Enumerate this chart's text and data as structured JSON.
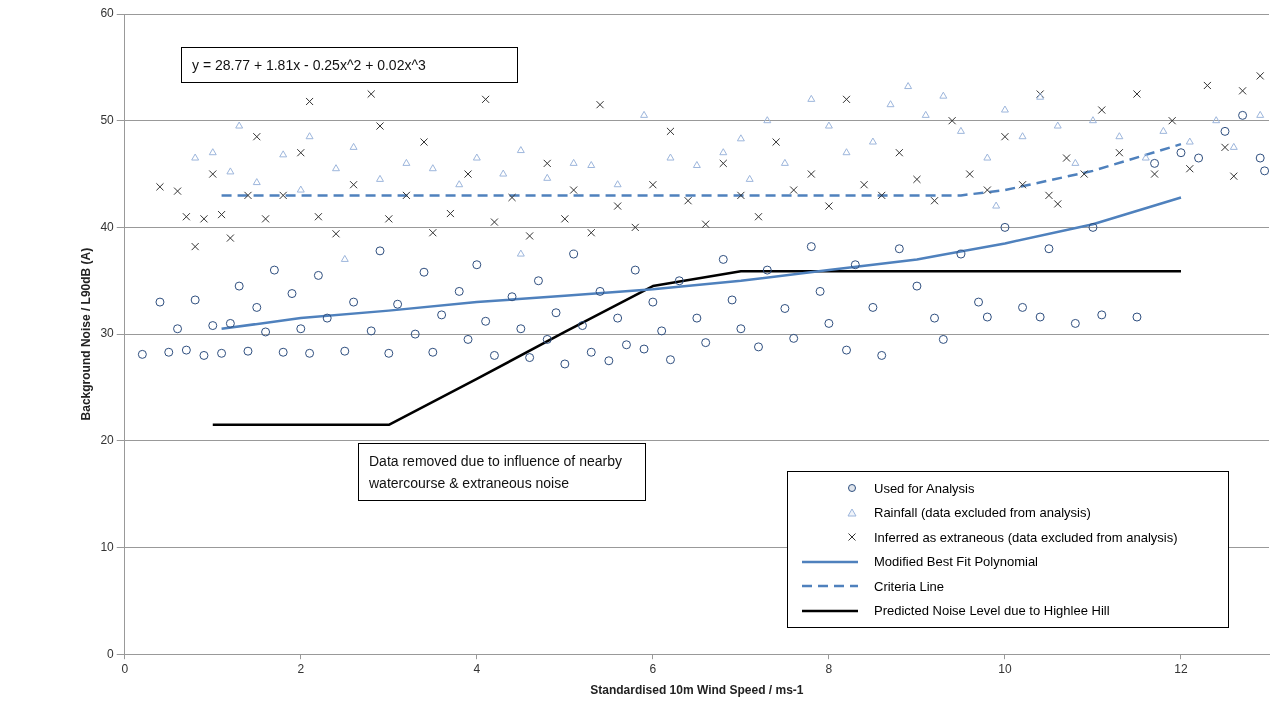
{
  "chart_data": {
    "type": "scatter",
    "xlabel": "Standardised 10m Wind Speed / ms-1",
    "ylabel": "Background Noise / L90dB (A)",
    "xlim": [
      0,
      13
    ],
    "xticks": [
      0,
      2,
      4,
      6,
      8,
      10,
      12
    ],
    "ylim": [
      0,
      60
    ],
    "yticks": [
      0,
      10,
      20,
      30,
      40,
      50,
      60
    ],
    "grid": "y",
    "legend": "bottom right",
    "annotations": [
      "y = 28.77 + 1.81x - 0.25x^2 + 0.02x^3",
      "Data removed due to influence of nearby watercourse & extraneous noise"
    ],
    "series": [
      {
        "name": "Used for Analysis",
        "type": "scatter",
        "marker": "circle",
        "color": "#2f4f7f",
        "x": [
          0.2,
          0.4,
          0.5,
          0.6,
          0.7,
          0.8,
          0.9,
          1.0,
          1.1,
          1.2,
          1.3,
          1.4,
          1.5,
          1.6,
          1.7,
          1.8,
          1.9,
          2.0,
          2.1,
          2.2,
          2.3,
          2.5,
          2.6,
          2.8,
          2.9,
          3.0,
          3.1,
          3.3,
          3.4,
          3.5,
          3.6,
          3.8,
          3.9,
          4.0,
          4.1,
          4.2,
          4.4,
          4.5,
          4.6,
          4.7,
          4.8,
          4.9,
          5.0,
          5.1,
          5.2,
          5.3,
          5.4,
          5.5,
          5.6,
          5.7,
          5.8,
          5.9,
          6.0,
          6.1,
          6.2,
          6.3,
          6.5,
          6.6,
          6.8,
          6.9,
          7.0,
          7.2,
          7.3,
          7.5,
          7.6,
          7.8,
          7.9,
          8.0,
          8.2,
          8.3,
          8.5,
          8.6,
          8.8,
          9.0,
          9.2,
          9.3,
          9.5,
          9.7,
          9.8,
          10.0,
          10.2,
          10.4,
          10.5,
          10.8,
          11.0,
          11.1,
          11.5,
          11.7,
          12.0,
          12.2,
          12.5,
          12.7,
          12.9,
          12.95
        ],
        "values": [
          28.1,
          33,
          28.3,
          30.5,
          28.5,
          33.2,
          28,
          30.8,
          28.2,
          31,
          34.5,
          28.4,
          32.5,
          30.2,
          36,
          28.3,
          33.8,
          30.5,
          28.2,
          35.5,
          31.5,
          28.4,
          33,
          30.3,
          37.8,
          28.2,
          32.8,
          30,
          35.8,
          28.3,
          31.8,
          34,
          29.5,
          36.5,
          31.2,
          28,
          33.5,
          30.5,
          27.8,
          35,
          29.5,
          32,
          27.2,
          37.5,
          30.8,
          28.3,
          34,
          27.5,
          31.5,
          29,
          36,
          28.6,
          33,
          30.3,
          27.6,
          35,
          31.5,
          29.2,
          37,
          33.2,
          30.5,
          28.8,
          36,
          32.4,
          29.6,
          38.2,
          34,
          31,
          28.5,
          36.5,
          32.5,
          28,
          38,
          34.5,
          31.5,
          29.5,
          37.5,
          33,
          31.6,
          40,
          32.5,
          31.6,
          38,
          31,
          40,
          31.8,
          31.6,
          46,
          47,
          46.5,
          49,
          50.5,
          46.5,
          45.3
        ]
      },
      {
        "name": "Rainfall (data excluded from analysis)",
        "type": "scatter",
        "marker": "triangle",
        "color": "#9db6dc",
        "x": [
          0.8,
          1.0,
          1.2,
          1.3,
          1.5,
          1.8,
          2.0,
          2.1,
          2.4,
          2.6,
          2.9,
          3.2,
          3.5,
          3.8,
          4.0,
          4.3,
          4.5,
          4.8,
          5.1,
          5.3,
          5.6,
          5.9,
          6.2,
          6.5,
          6.8,
          7.0,
          7.3,
          7.5,
          7.8,
          8.0,
          8.2,
          8.5,
          8.7,
          8.9,
          9.1,
          9.3,
          9.5,
          9.8,
          10.0,
          10.2,
          10.4,
          10.6,
          10.8,
          11.0,
          11.3,
          11.6,
          11.8,
          12.1,
          12.4,
          12.6,
          12.9,
          4.5,
          2.5,
          7.1,
          9.9
        ],
        "values": [
          46.5,
          47,
          45.2,
          49.5,
          44.2,
          46.8,
          43.5,
          48.5,
          45.5,
          47.5,
          44.5,
          46,
          45.5,
          44,
          46.5,
          45,
          47.2,
          44.6,
          46,
          45.8,
          44,
          50.5,
          46.5,
          45.8,
          47,
          48.3,
          50,
          46,
          52,
          49.5,
          47,
          48,
          51.5,
          53.2,
          50.5,
          52.3,
          49,
          46.5,
          51,
          48.5,
          52.2,
          49.5,
          46,
          50,
          48.5,
          46.5,
          49,
          48,
          50,
          47.5,
          50.5,
          37.5,
          37,
          44.5,
          42
        ]
      },
      {
        "name": "Inferred as extraneous (data excluded from analysis)",
        "type": "scatter",
        "marker": "cross",
        "color": "#333333",
        "x": [
          0.4,
          0.6,
          0.7,
          0.8,
          0.9,
          1.0,
          1.1,
          1.2,
          1.4,
          1.5,
          1.6,
          1.8,
          2.0,
          2.1,
          2.2,
          2.4,
          2.6,
          2.8,
          2.9,
          3.0,
          3.2,
          3.4,
          3.5,
          3.7,
          3.9,
          4.1,
          4.2,
          4.4,
          4.6,
          4.8,
          5.0,
          5.1,
          5.3,
          5.4,
          5.6,
          5.8,
          6.0,
          6.2,
          6.4,
          6.6,
          6.8,
          7.0,
          7.2,
          7.4,
          7.6,
          7.8,
          8.0,
          8.2,
          8.4,
          8.6,
          8.8,
          9.0,
          9.2,
          9.4,
          9.6,
          9.8,
          10.0,
          10.2,
          10.4,
          10.5,
          10.7,
          10.9,
          11.1,
          11.3,
          11.5,
          11.7,
          11.9,
          12.1,
          12.3,
          12.5,
          12.7,
          12.9,
          10.6,
          12.6
        ],
        "values": [
          43.8,
          43.4,
          41,
          38.2,
          40.8,
          45,
          41.2,
          39,
          43,
          48.5,
          40.8,
          43,
          47,
          51.8,
          41,
          39.4,
          44,
          52.5,
          49.5,
          40.8,
          43,
          48,
          39.5,
          41.3,
          45,
          52,
          40.5,
          42.8,
          39.2,
          46,
          40.8,
          43.5,
          39.5,
          51.5,
          42,
          40,
          44,
          49,
          42.5,
          40.3,
          46,
          43,
          41,
          48,
          43.5,
          45,
          42,
          52,
          44,
          43,
          47,
          44.5,
          42.5,
          50,
          45,
          43.5,
          48.5,
          44,
          52.5,
          43,
          46.5,
          45,
          51,
          47,
          52.5,
          45,
          50,
          45.5,
          53.3,
          47.5,
          52.8,
          54.2,
          42.2,
          44.8
        ]
      },
      {
        "name": "Modified Best Fit Polynomial",
        "type": "line",
        "line_style": "solid",
        "color": "#4f81bd",
        "x": [
          1.1,
          2,
          3,
          4,
          5,
          6,
          7,
          8,
          9,
          10,
          11,
          12
        ],
        "values": [
          30.5,
          31.5,
          32.2,
          33,
          33.6,
          34.2,
          35,
          36,
          37,
          38.5,
          40.3,
          42.8
        ]
      },
      {
        "name": "Criteria Line",
        "type": "line",
        "line_style": "dashed",
        "color": "#4f81bd",
        "x": [
          1.1,
          9.5,
          10,
          11,
          12
        ],
        "values": [
          43,
          43,
          43.5,
          45.3,
          47.8
        ]
      },
      {
        "name": "Predicted Noise Level due to Highlee Hill",
        "type": "line",
        "line_style": "solid",
        "color": "#000000",
        "x": [
          1,
          3,
          4,
          5,
          6,
          7,
          12
        ],
        "values": [
          21.5,
          21.5,
          25.8,
          30.2,
          34.5,
          35.9,
          35.9
        ]
      }
    ]
  }
}
